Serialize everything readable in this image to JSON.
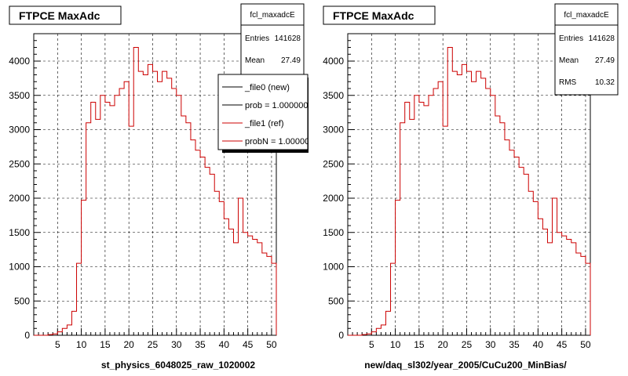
{
  "chart_data": [
    {
      "type": "histogram",
      "title": "FTPCE MaxAdc",
      "xlabel": "st_physics_6048025_raw_1020002",
      "ylabel": "",
      "xlim": [
        0,
        51
      ],
      "ylim": [
        0,
        4400
      ],
      "xticks": [
        5,
        10,
        15,
        20,
        25,
        30,
        35,
        40,
        45,
        50
      ],
      "yticks": [
        0,
        500,
        1000,
        1500,
        2000,
        2500,
        3000,
        3500,
        4000
      ],
      "grid": true,
      "bin_width": 1,
      "x_start": 0,
      "series": [
        {
          "name": "_file1 (ref)",
          "color": "#cc0000",
          "values": [
            0,
            0,
            0,
            10,
            20,
            50,
            100,
            150,
            350,
            1050,
            1970,
            3100,
            3400,
            3150,
            3500,
            3400,
            3350,
            3500,
            3600,
            3700,
            3050,
            4200,
            3850,
            3800,
            3950,
            3850,
            3700,
            3850,
            3750,
            3600,
            3500,
            3200,
            3100,
            2850,
            2700,
            2600,
            2450,
            2350,
            2100,
            1950,
            1700,
            1550,
            1350,
            2000,
            1500,
            1450,
            1400,
            1350,
            1200,
            1150,
            1050
          ]
        }
      ],
      "stats": {
        "title": "fcl_maxadcE",
        "entries_label": "Entries",
        "entries": "141628",
        "mean_label": "Mean",
        "mean": "27.49"
      },
      "legend": {
        "position": "top-right",
        "entries": [
          {
            "label": "_file0 (new)",
            "color": "#000000"
          },
          {
            "label": "prob = 1.000000",
            "color": "#000000"
          },
          {
            "label": "_file1 (ref)",
            "color": "#cc0000"
          },
          {
            "label": "probN = 1.000000",
            "color": "#cc0000"
          }
        ]
      }
    },
    {
      "type": "histogram",
      "title": "FTPCE MaxAdc",
      "xlabel": "new/daq_sl302/year_2005/CuCu200_MinBias/",
      "ylabel": "",
      "xlim": [
        0,
        51
      ],
      "ylim": [
        0,
        4400
      ],
      "xticks": [
        5,
        10,
        15,
        20,
        25,
        30,
        35,
        40,
        45,
        50
      ],
      "yticks": [
        0,
        500,
        1000,
        1500,
        2000,
        2500,
        3000,
        3500,
        4000
      ],
      "grid": true,
      "bin_width": 1,
      "x_start": 0,
      "series": [
        {
          "name": "",
          "color": "#cc0000",
          "values": [
            0,
            0,
            0,
            10,
            20,
            50,
            100,
            150,
            350,
            1050,
            1970,
            3100,
            3400,
            3150,
            3500,
            3400,
            3350,
            3500,
            3600,
            3700,
            3050,
            4200,
            3850,
            3800,
            3950,
            3850,
            3700,
            3850,
            3750,
            3600,
            3500,
            3200,
            3100,
            2850,
            2700,
            2600,
            2450,
            2350,
            2100,
            1950,
            1700,
            1550,
            1350,
            2000,
            1500,
            1450,
            1400,
            1350,
            1200,
            1150,
            1050
          ]
        }
      ],
      "stats": {
        "title": "fcl_maxadcE",
        "entries_label": "Entries",
        "entries": "141628",
        "mean_label": "Mean",
        "mean": "27.49",
        "rms_label": "RMS",
        "rms": "10.32"
      }
    }
  ]
}
